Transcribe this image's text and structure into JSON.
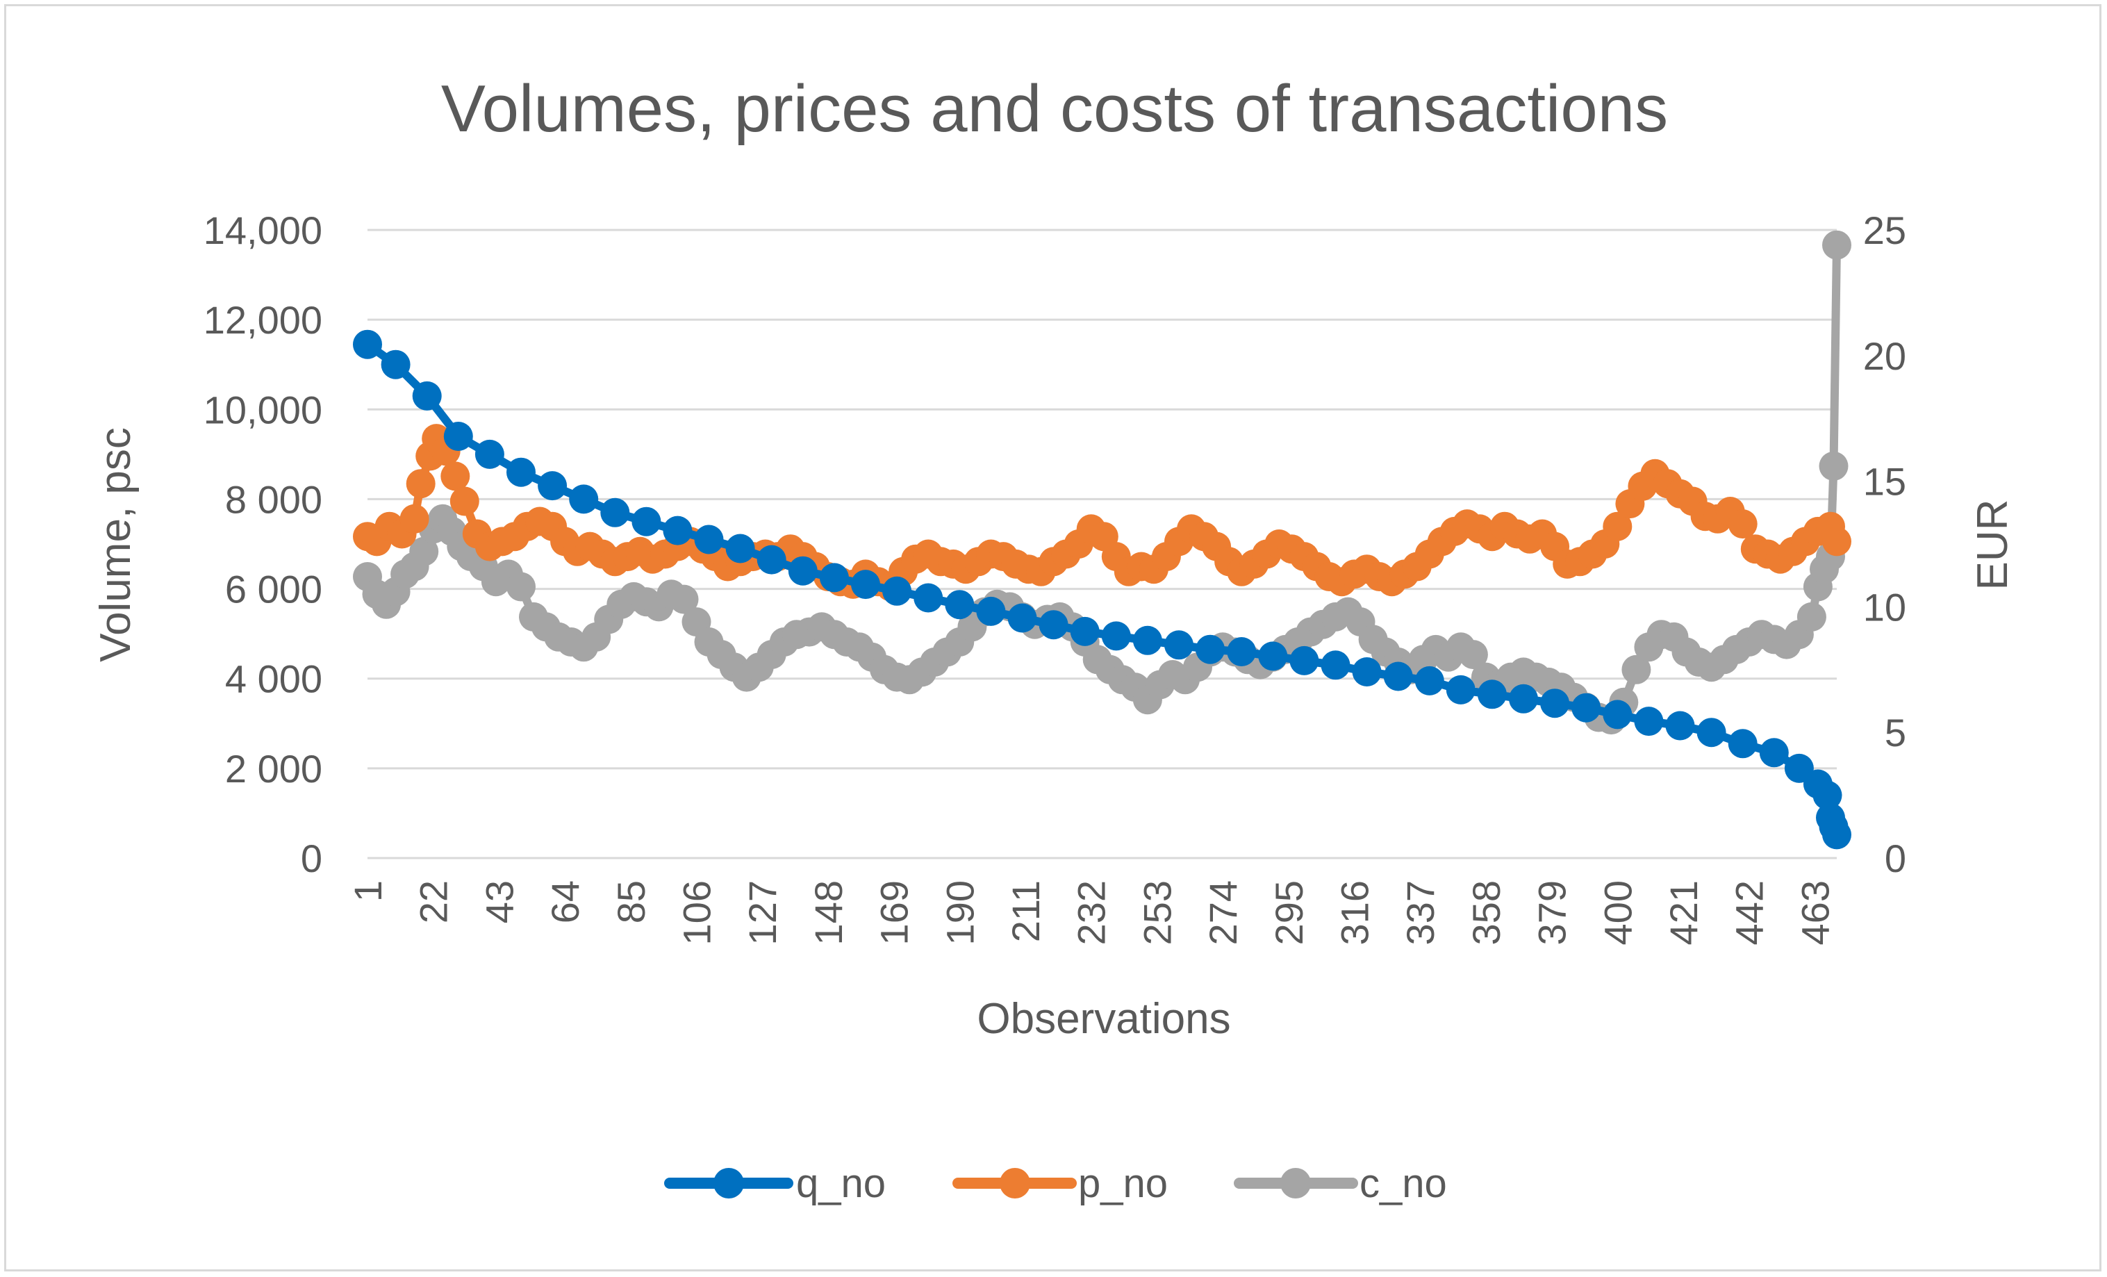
{
  "chart_data": {
    "type": "line",
    "title": "Volumes, prices and costs of transactions",
    "xlabel": "Observations",
    "ylabel": "Volume, psc",
    "y2label": "EUR",
    "grid": true,
    "legend_position": "bottom",
    "x_range": [
      1,
      470
    ],
    "x_tick_labels": [
      "1",
      "22",
      "43",
      "64",
      "85",
      "106",
      "127",
      "148",
      "169",
      "190",
      "211",
      "232",
      "253",
      "274",
      "295",
      "316",
      "337",
      "358",
      "379",
      "400",
      "421",
      "442",
      "463"
    ],
    "y_left": {
      "ylim": [
        0,
        14000
      ],
      "ticks": [
        0,
        2000,
        4000,
        6000,
        8000,
        10000,
        12000,
        14000
      ],
      "tick_labels": [
        "0",
        "2 000",
        "4 000",
        "6 000",
        "8 000",
        "10,000",
        "12,000",
        "14,000"
      ]
    },
    "y_right": {
      "ylim": [
        0,
        25
      ],
      "ticks": [
        0,
        5,
        10,
        15,
        20,
        25
      ],
      "tick_labels": [
        "0",
        "5",
        "10",
        "15",
        "20",
        "25"
      ]
    },
    "series": [
      {
        "name": "q_no",
        "axis": "left",
        "color": "#0070c0",
        "points": [
          [
            1,
            11450
          ],
          [
            10,
            11000
          ],
          [
            20,
            10300
          ],
          [
            30,
            9400
          ],
          [
            40,
            9000
          ],
          [
            50,
            8600
          ],
          [
            60,
            8300
          ],
          [
            70,
            8000
          ],
          [
            80,
            7700
          ],
          [
            90,
            7500
          ],
          [
            100,
            7300
          ],
          [
            110,
            7100
          ],
          [
            120,
            6900
          ],
          [
            130,
            6650
          ],
          [
            140,
            6400
          ],
          [
            150,
            6250
          ],
          [
            160,
            6100
          ],
          [
            170,
            5950
          ],
          [
            180,
            5800
          ],
          [
            190,
            5650
          ],
          [
            200,
            5500
          ],
          [
            210,
            5350
          ],
          [
            220,
            5200
          ],
          [
            230,
            5050
          ],
          [
            240,
            4950
          ],
          [
            250,
            4850
          ],
          [
            260,
            4750
          ],
          [
            270,
            4650
          ],
          [
            280,
            4600
          ],
          [
            290,
            4500
          ],
          [
            300,
            4400
          ],
          [
            310,
            4300
          ],
          [
            320,
            4150
          ],
          [
            330,
            4050
          ],
          [
            340,
            3950
          ],
          [
            350,
            3750
          ],
          [
            360,
            3650
          ],
          [
            370,
            3550
          ],
          [
            380,
            3450
          ],
          [
            390,
            3350
          ],
          [
            400,
            3200
          ],
          [
            410,
            3050
          ],
          [
            420,
            2950
          ],
          [
            430,
            2800
          ],
          [
            440,
            2550
          ],
          [
            450,
            2350
          ],
          [
            458,
            2000
          ],
          [
            464,
            1650
          ],
          [
            467,
            1400
          ],
          [
            468,
            900
          ],
          [
            469,
            700
          ],
          [
            470,
            520
          ]
        ]
      },
      {
        "name": "p_no",
        "axis": "right",
        "color": "#ed7d31",
        "points": [
          [
            1,
            12.8
          ],
          [
            4,
            12.6
          ],
          [
            8,
            13.2
          ],
          [
            12,
            12.9
          ],
          [
            16,
            13.5
          ],
          [
            18,
            14.9
          ],
          [
            21,
            16.0
          ],
          [
            23,
            16.7
          ],
          [
            26,
            16.2
          ],
          [
            29,
            15.2
          ],
          [
            32,
            14.2
          ],
          [
            36,
            12.9
          ],
          [
            40,
            12.4
          ],
          [
            44,
            12.6
          ],
          [
            48,
            12.8
          ],
          [
            52,
            13.2
          ],
          [
            56,
            13.4
          ],
          [
            60,
            13.2
          ],
          [
            64,
            12.6
          ],
          [
            68,
            12.2
          ],
          [
            72,
            12.4
          ],
          [
            76,
            12.1
          ],
          [
            80,
            11.8
          ],
          [
            84,
            12.0
          ],
          [
            88,
            12.2
          ],
          [
            92,
            11.9
          ],
          [
            96,
            12.1
          ],
          [
            100,
            12.4
          ],
          [
            104,
            12.6
          ],
          [
            108,
            12.3
          ],
          [
            112,
            12.0
          ],
          [
            116,
            11.6
          ],
          [
            120,
            11.8
          ],
          [
            124,
            12.0
          ],
          [
            128,
            12.1
          ],
          [
            132,
            12.0
          ],
          [
            136,
            12.3
          ],
          [
            140,
            12.0
          ],
          [
            144,
            11.6
          ],
          [
            148,
            11.2
          ],
          [
            152,
            11.0
          ],
          [
            156,
            10.9
          ],
          [
            160,
            11.3
          ],
          [
            164,
            11.0
          ],
          [
            168,
            10.8
          ],
          [
            172,
            11.4
          ],
          [
            176,
            11.9
          ],
          [
            180,
            12.1
          ],
          [
            184,
            11.8
          ],
          [
            188,
            11.7
          ],
          [
            192,
            11.5
          ],
          [
            196,
            11.8
          ],
          [
            200,
            12.1
          ],
          [
            204,
            12.0
          ],
          [
            208,
            11.7
          ],
          [
            212,
            11.5
          ],
          [
            216,
            11.4
          ],
          [
            220,
            11.8
          ],
          [
            224,
            12.1
          ],
          [
            228,
            12.5
          ],
          [
            232,
            13.1
          ],
          [
            236,
            12.8
          ],
          [
            240,
            12.0
          ],
          [
            244,
            11.4
          ],
          [
            248,
            11.6
          ],
          [
            252,
            11.5
          ],
          [
            256,
            12.0
          ],
          [
            260,
            12.6
          ],
          [
            264,
            13.1
          ],
          [
            268,
            12.8
          ],
          [
            272,
            12.4
          ],
          [
            276,
            11.8
          ],
          [
            280,
            11.4
          ],
          [
            284,
            11.7
          ],
          [
            288,
            12.1
          ],
          [
            292,
            12.5
          ],
          [
            296,
            12.3
          ],
          [
            300,
            12.0
          ],
          [
            304,
            11.6
          ],
          [
            308,
            11.2
          ],
          [
            312,
            11.0
          ],
          [
            316,
            11.3
          ],
          [
            320,
            11.5
          ],
          [
            324,
            11.2
          ],
          [
            328,
            11.0
          ],
          [
            332,
            11.3
          ],
          [
            336,
            11.6
          ],
          [
            340,
            12.1
          ],
          [
            344,
            12.6
          ],
          [
            348,
            13.0
          ],
          [
            352,
            13.3
          ],
          [
            356,
            13.1
          ],
          [
            360,
            12.8
          ],
          [
            364,
            13.2
          ],
          [
            368,
            12.9
          ],
          [
            372,
            12.7
          ],
          [
            376,
            12.9
          ],
          [
            380,
            12.4
          ],
          [
            384,
            11.7
          ],
          [
            388,
            11.8
          ],
          [
            392,
            12.1
          ],
          [
            396,
            12.5
          ],
          [
            400,
            13.2
          ],
          [
            404,
            14.1
          ],
          [
            408,
            14.8
          ],
          [
            412,
            15.3
          ],
          [
            416,
            14.9
          ],
          [
            420,
            14.5
          ],
          [
            424,
            14.2
          ],
          [
            428,
            13.6
          ],
          [
            432,
            13.5
          ],
          [
            436,
            13.8
          ],
          [
            440,
            13.3
          ],
          [
            444,
            12.3
          ],
          [
            448,
            12.1
          ],
          [
            452,
            11.9
          ],
          [
            456,
            12.2
          ],
          [
            460,
            12.6
          ],
          [
            464,
            13.0
          ],
          [
            468,
            13.2
          ],
          [
            470,
            12.6
          ]
        ]
      },
      {
        "name": "c_no",
        "axis": "right",
        "color": "#a5a5a5",
        "points": [
          [
            1,
            11.2
          ],
          [
            4,
            10.5
          ],
          [
            7,
            10.1
          ],
          [
            10,
            10.6
          ],
          [
            13,
            11.3
          ],
          [
            16,
            11.6
          ],
          [
            19,
            12.2
          ],
          [
            22,
            13.1
          ],
          [
            25,
            13.5
          ],
          [
            28,
            13.0
          ],
          [
            31,
            12.4
          ],
          [
            34,
            12.0
          ],
          [
            38,
            11.6
          ],
          [
            42,
            11.0
          ],
          [
            46,
            11.3
          ],
          [
            50,
            10.8
          ],
          [
            54,
            9.6
          ],
          [
            58,
            9.2
          ],
          [
            62,
            8.8
          ],
          [
            66,
            8.6
          ],
          [
            70,
            8.4
          ],
          [
            74,
            8.8
          ],
          [
            78,
            9.5
          ],
          [
            82,
            10.1
          ],
          [
            86,
            10.4
          ],
          [
            90,
            10.2
          ],
          [
            94,
            10.0
          ],
          [
            98,
            10.5
          ],
          [
            102,
            10.3
          ],
          [
            106,
            9.4
          ],
          [
            110,
            8.6
          ],
          [
            114,
            8.1
          ],
          [
            118,
            7.6
          ],
          [
            122,
            7.2
          ],
          [
            126,
            7.6
          ],
          [
            130,
            8.1
          ],
          [
            134,
            8.6
          ],
          [
            138,
            8.9
          ],
          [
            142,
            9.0
          ],
          [
            146,
            9.2
          ],
          [
            150,
            8.9
          ],
          [
            154,
            8.6
          ],
          [
            158,
            8.4
          ],
          [
            162,
            8.0
          ],
          [
            166,
            7.5
          ],
          [
            170,
            7.2
          ],
          [
            174,
            7.1
          ],
          [
            178,
            7.4
          ],
          [
            182,
            7.8
          ],
          [
            186,
            8.2
          ],
          [
            190,
            8.6
          ],
          [
            194,
            9.2
          ],
          [
            198,
            9.8
          ],
          [
            202,
            10.1
          ],
          [
            206,
            10.0
          ],
          [
            210,
            9.6
          ],
          [
            214,
            9.3
          ],
          [
            218,
            9.5
          ],
          [
            222,
            9.6
          ],
          [
            226,
            9.2
          ],
          [
            230,
            8.6
          ],
          [
            234,
            7.9
          ],
          [
            238,
            7.5
          ],
          [
            242,
            7.1
          ],
          [
            246,
            6.8
          ],
          [
            250,
            6.3
          ],
          [
            254,
            6.9
          ],
          [
            258,
            7.3
          ],
          [
            262,
            7.1
          ],
          [
            266,
            7.6
          ],
          [
            270,
            8.2
          ],
          [
            274,
            8.4
          ],
          [
            278,
            8.2
          ],
          [
            282,
            7.9
          ],
          [
            286,
            7.7
          ],
          [
            290,
            8.0
          ],
          [
            294,
            8.3
          ],
          [
            298,
            8.6
          ],
          [
            302,
            9.0
          ],
          [
            306,
            9.3
          ],
          [
            310,
            9.6
          ],
          [
            314,
            9.8
          ],
          [
            318,
            9.4
          ],
          [
            322,
            8.7
          ],
          [
            326,
            8.2
          ],
          [
            330,
            7.8
          ],
          [
            334,
            7.5
          ],
          [
            338,
            7.9
          ],
          [
            342,
            8.3
          ],
          [
            346,
            8.0
          ],
          [
            350,
            8.4
          ],
          [
            354,
            8.1
          ],
          [
            358,
            7.2
          ],
          [
            362,
            6.9
          ],
          [
            366,
            7.2
          ],
          [
            370,
            7.4
          ],
          [
            374,
            7.2
          ],
          [
            378,
            7.0
          ],
          [
            382,
            6.8
          ],
          [
            386,
            6.4
          ],
          [
            390,
            6.0
          ],
          [
            394,
            5.6
          ],
          [
            398,
            5.5
          ],
          [
            402,
            6.2
          ],
          [
            406,
            7.5
          ],
          [
            410,
            8.4
          ],
          [
            414,
            8.9
          ],
          [
            418,
            8.8
          ],
          [
            422,
            8.2
          ],
          [
            426,
            7.8
          ],
          [
            430,
            7.6
          ],
          [
            434,
            7.9
          ],
          [
            438,
            8.3
          ],
          [
            442,
            8.6
          ],
          [
            446,
            8.9
          ],
          [
            450,
            8.7
          ],
          [
            454,
            8.5
          ],
          [
            458,
            8.9
          ],
          [
            462,
            9.6
          ],
          [
            464,
            10.8
          ],
          [
            466,
            11.5
          ],
          [
            468,
            12.0
          ],
          [
            469,
            15.6
          ],
          [
            470,
            24.4
          ]
        ]
      }
    ]
  }
}
